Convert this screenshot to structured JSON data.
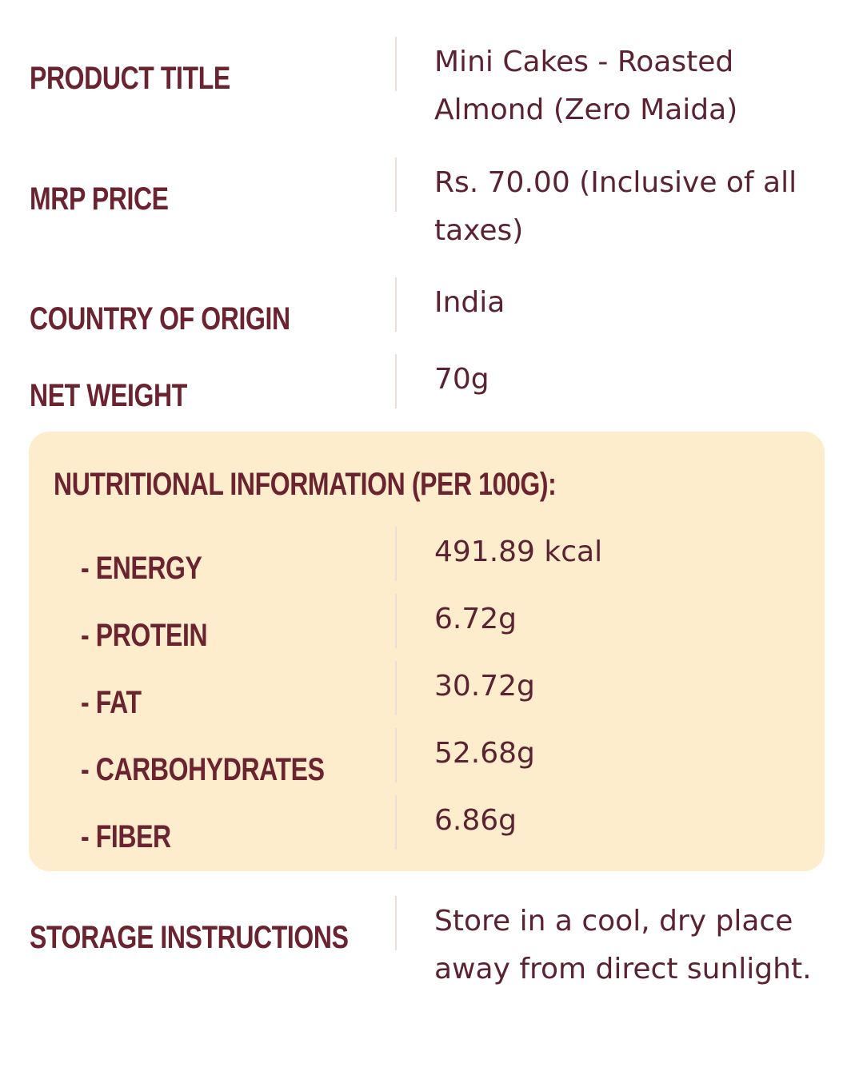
{
  "rows": [
    {
      "label": "PRODUCT TITLE",
      "value": "Mini Cakes - Roasted Almond (Zero Maida)"
    },
    {
      "label": "MRP PRICE",
      "value": "Rs. 70.00 (Inclusive of all taxes)"
    },
    {
      "label": "COUNTRY OF ORIGIN",
      "value": "India"
    },
    {
      "label": "NET WEIGHT",
      "value": "70g"
    }
  ],
  "nutrition": {
    "title": "NUTRITIONAL INFORMATION (PER 100G):",
    "rows": [
      {
        "label": "- ENERGY",
        "value": "491.89 kcal"
      },
      {
        "label": "- PROTEIN",
        "value": "6.72g"
      },
      {
        "label": "- FAT",
        "value": "30.72g"
      },
      {
        "label": "- CARBOHYDRATES",
        "value": "52.68g"
      },
      {
        "label": "- FIBER",
        "value": "6.86g"
      }
    ]
  },
  "storage": {
    "label": "STORAGE INSTRUCTIONS",
    "value": "Store in a cool, dry place away from direct sunlight."
  }
}
